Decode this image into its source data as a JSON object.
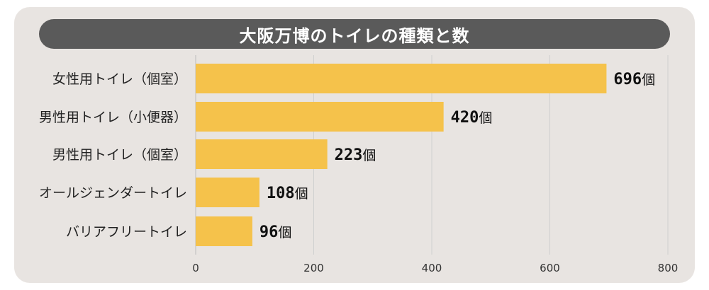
{
  "chart_data": {
    "type": "bar",
    "orientation": "horizontal",
    "title": "大阪万博のトイレの種類と数",
    "categories": [
      "女性用トイレ（個室）",
      "男性用トイレ（小便器）",
      "男性用トイレ（個室）",
      "オールジェンダートイレ",
      "バリアフリートイレ"
    ],
    "values": [
      696,
      420,
      223,
      108,
      96
    ],
    "value_unit": "個",
    "xlim": [
      0,
      800
    ],
    "xticks": [
      0,
      200,
      400,
      600,
      800
    ],
    "grid": true,
    "legend": "none",
    "colors": {
      "bar": "#f5c24b",
      "grid": "#cfcfcf",
      "title_bar": "#5a5a5a",
      "panel": "#e8e4e1"
    }
  }
}
